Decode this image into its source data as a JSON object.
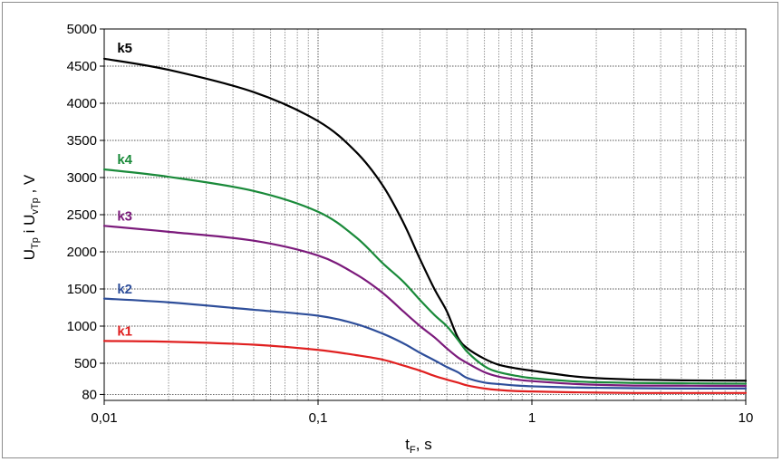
{
  "chart_data": {
    "type": "line",
    "xscale": "log",
    "xlim": [
      0.01,
      10
    ],
    "ylim": [
      0,
      5000
    ],
    "grid": true,
    "xlabel": {
      "main": "t",
      "sub": "F",
      "suffix": ", s"
    },
    "ylabel": {
      "part1": "U",
      "sub1": "Tp",
      "mid": " i  U",
      "sub2": "vTp",
      "suffix": " ,  V"
    },
    "x_ticks": [
      {
        "value": 0.01,
        "label": "0,01"
      },
      {
        "value": 0.1,
        "label": "0,1"
      },
      {
        "value": 1,
        "label": "1"
      },
      {
        "value": 10,
        "label": "10"
      }
    ],
    "y_ticks": [
      {
        "value": 80,
        "label": "80"
      },
      {
        "value": 500,
        "label": "500"
      },
      {
        "value": 1000,
        "label": "1000"
      },
      {
        "value": 1500,
        "label": "1500"
      },
      {
        "value": 2000,
        "label": "2000"
      },
      {
        "value": 2500,
        "label": "2500"
      },
      {
        "value": 3000,
        "label": "3000"
      },
      {
        "value": 3500,
        "label": "3500"
      },
      {
        "value": 4000,
        "label": "4000"
      },
      {
        "value": 4500,
        "label": "4500"
      },
      {
        "value": 5000,
        "label": "5000"
      }
    ],
    "series": [
      {
        "name": "k5",
        "color": "#000000",
        "points": [
          [
            0.01,
            4600
          ],
          [
            0.02,
            4450
          ],
          [
            0.05,
            4150
          ],
          [
            0.1,
            3760
          ],
          [
            0.15,
            3350
          ],
          [
            0.2,
            2900
          ],
          [
            0.25,
            2400
          ],
          [
            0.3,
            1900
          ],
          [
            0.35,
            1500
          ],
          [
            0.4,
            1200
          ],
          [
            0.45,
            850
          ],
          [
            0.5,
            700
          ],
          [
            0.6,
            560
          ],
          [
            0.7,
            480
          ],
          [
            0.85,
            430
          ],
          [
            1,
            400
          ],
          [
            1.5,
            330
          ],
          [
            2,
            300
          ],
          [
            3,
            280
          ],
          [
            5,
            270
          ],
          [
            10,
            265
          ]
        ],
        "label_at": [
          0.0115,
          4680
        ]
      },
      {
        "name": "k4",
        "color": "#1a8a3a",
        "points": [
          [
            0.01,
            3110
          ],
          [
            0.02,
            3010
          ],
          [
            0.05,
            2820
          ],
          [
            0.1,
            2540
          ],
          [
            0.15,
            2200
          ],
          [
            0.2,
            1850
          ],
          [
            0.25,
            1600
          ],
          [
            0.3,
            1350
          ],
          [
            0.35,
            1150
          ],
          [
            0.4,
            1000
          ],
          [
            0.45,
            820
          ],
          [
            0.5,
            650
          ],
          [
            0.6,
            460
          ],
          [
            0.7,
            380
          ],
          [
            0.85,
            330
          ],
          [
            1,
            300
          ],
          [
            1.5,
            260
          ],
          [
            2,
            245
          ],
          [
            3,
            235
          ],
          [
            5,
            230
          ],
          [
            10,
            225
          ]
        ],
        "label_at": [
          0.0115,
          3180
        ]
      },
      {
        "name": "k3",
        "color": "#7b1a7b",
        "points": [
          [
            0.01,
            2350
          ],
          [
            0.02,
            2270
          ],
          [
            0.05,
            2150
          ],
          [
            0.1,
            1950
          ],
          [
            0.15,
            1700
          ],
          [
            0.2,
            1450
          ],
          [
            0.25,
            1200
          ],
          [
            0.3,
            1000
          ],
          [
            0.35,
            850
          ],
          [
            0.4,
            700
          ],
          [
            0.45,
            580
          ],
          [
            0.5,
            500
          ],
          [
            0.6,
            380
          ],
          [
            0.7,
            320
          ],
          [
            0.85,
            280
          ],
          [
            1,
            260
          ],
          [
            1.5,
            225
          ],
          [
            2,
            210
          ],
          [
            3,
            200
          ],
          [
            5,
            198
          ],
          [
            10,
            195
          ]
        ],
        "label_at": [
          0.0115,
          2420
        ]
      },
      {
        "name": "k2",
        "color": "#2e4e9a",
        "points": [
          [
            0.01,
            1370
          ],
          [
            0.02,
            1320
          ],
          [
            0.05,
            1220
          ],
          [
            0.1,
            1140
          ],
          [
            0.15,
            1030
          ],
          [
            0.2,
            900
          ],
          [
            0.25,
            770
          ],
          [
            0.3,
            640
          ],
          [
            0.35,
            540
          ],
          [
            0.4,
            450
          ],
          [
            0.45,
            380
          ],
          [
            0.5,
            300
          ],
          [
            0.6,
            240
          ],
          [
            0.7,
            220
          ],
          [
            0.85,
            200
          ],
          [
            1,
            190
          ],
          [
            1.5,
            175
          ],
          [
            2,
            170
          ],
          [
            3,
            165
          ],
          [
            5,
            160
          ],
          [
            10,
            160
          ]
        ],
        "label_at": [
          0.0115,
          1440
        ]
      },
      {
        "name": "k1",
        "color": "#e02020",
        "points": [
          [
            0.01,
            800
          ],
          [
            0.02,
            790
          ],
          [
            0.05,
            750
          ],
          [
            0.1,
            680
          ],
          [
            0.15,
            610
          ],
          [
            0.2,
            550
          ],
          [
            0.25,
            470
          ],
          [
            0.3,
            400
          ],
          [
            0.35,
            330
          ],
          [
            0.4,
            280
          ],
          [
            0.45,
            240
          ],
          [
            0.5,
            200
          ],
          [
            0.6,
            160
          ],
          [
            0.7,
            140
          ],
          [
            0.85,
            125
          ],
          [
            1,
            120
          ],
          [
            1.5,
            110
          ],
          [
            2,
            105
          ],
          [
            3,
            100
          ],
          [
            5,
            100
          ],
          [
            10,
            100
          ]
        ],
        "label_at": [
          0.0115,
          870
        ]
      }
    ]
  }
}
